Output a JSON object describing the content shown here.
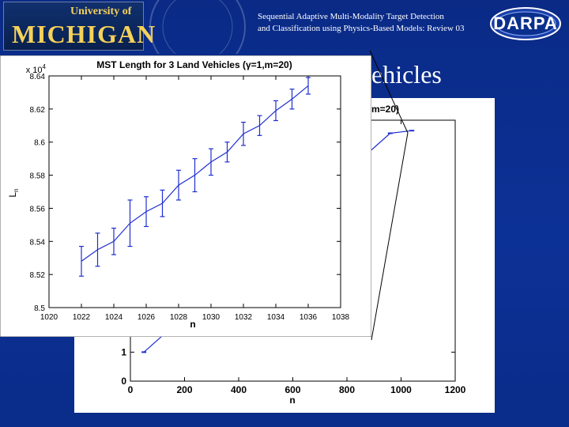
{
  "header": {
    "university_top": "University of",
    "university_main": "MICHIGAN",
    "subtitle_line1": "Sequential Adaptive Multi-Modality Target Detection",
    "subtitle_line2": "and Classification using Physics-Based Models: Review 03",
    "sponsor_logo": "DARPA"
  },
  "slide_title_fragment": "ehicles",
  "colors": {
    "background": "#0b2f8c",
    "series": "#1f2fd0",
    "accent_gold": "#f6d25a"
  },
  "chart_data": [
    {
      "type": "line",
      "title": "MST Length for 3 Land Vehicles (γ=1,m=20)",
      "xlabel": "n",
      "ylabel": "L",
      "ylabel_subscript": "n",
      "y_multiplier": "x 10",
      "y_multiplier_exp": "4",
      "xlim": [
        1020,
        1038
      ],
      "ylim": [
        8.5,
        8.64
      ],
      "x_ticks": [
        "1020",
        "1022",
        "1024",
        "1026",
        "1028",
        "1030",
        "1032",
        "1034",
        "1036",
        "1038"
      ],
      "y_ticks": [
        "8.5",
        "8.52",
        "8.54",
        "8.56",
        "8.58",
        "8.6",
        "8.62",
        "8.64"
      ],
      "series": [
        {
          "x": [
            1022,
            1023,
            1024,
            1025,
            1026,
            1027,
            1028,
            1029,
            1030,
            1031,
            1032,
            1033,
            1034,
            1035,
            1036
          ],
          "y": [
            8.528,
            8.535,
            8.54,
            8.551,
            8.558,
            8.563,
            8.574,
            8.58,
            8.588,
            8.594,
            8.605,
            8.61,
            8.619,
            8.626,
            8.634
          ],
          "err": [
            0.009,
            0.01,
            0.008,
            0.014,
            0.009,
            0.008,
            0.009,
            0.01,
            0.008,
            0.006,
            0.007,
            0.006,
            0.006,
            0.006,
            0.005
          ]
        }
      ]
    },
    {
      "type": "line",
      "title": "m=20)",
      "xlabel": "n",
      "xlim": [
        0,
        1200
      ],
      "ylim": [
        0,
        9
      ],
      "x_ticks": [
        "0",
        "200",
        "400",
        "600",
        "800",
        "1000",
        "1200"
      ],
      "y_ticks": [
        "0",
        "1"
      ],
      "series": [
        {
          "x": [
            50,
            960,
            1040
          ],
          "y": [
            1.0,
            8.55,
            8.64
          ]
        }
      ]
    }
  ]
}
